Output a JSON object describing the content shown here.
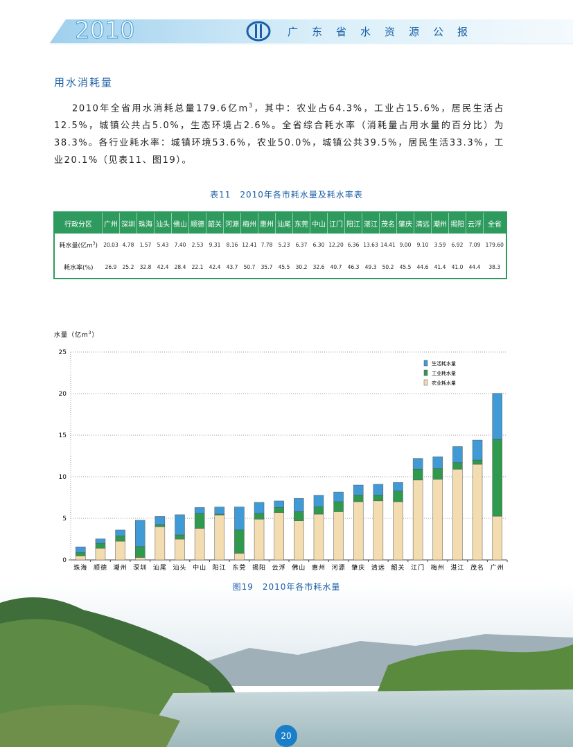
{
  "header": {
    "year": "2010",
    "title": "广东省水资源公报"
  },
  "section": {
    "heading": "用水消耗量",
    "paragraph_parts": [
      "2010年全省用水消耗总量179.6亿m",
      "3",
      "，其中：农业占64.3%，工业占15.6%，居民生活占12.5%，城镇公共占5.0%，生态环境占2.6%。全省综合耗水率（消耗量占用水量的百分比）为38.3%。各行业耗水率：城镇环境53.6%，农业50.0%，城镇公共39.5%，居民生活33.3%，工业20.1%（见表11、图19）。"
    ]
  },
  "table": {
    "caption": "表11　2010年各市耗水量及耗水率表",
    "header": [
      "行政分区",
      "广州",
      "深圳",
      "珠海",
      "汕头",
      "佛山",
      "顺德",
      "韶关",
      "河源",
      "梅州",
      "惠州",
      "汕尾",
      "东莞",
      "中山",
      "江门",
      "阳江",
      "湛江",
      "茂名",
      "肇庆",
      "清远",
      "潮州",
      "揭阳",
      "云浮",
      "全省"
    ],
    "rows": [
      {
        "label": [
          "耗水量(亿m",
          "3",
          ")"
        ],
        "cells": [
          "20.03",
          "4.78",
          "1.57",
          "5.43",
          "7.40",
          "2.53",
          "9.31",
          "8.16",
          "12.41",
          "7.78",
          "5.23",
          "6.37",
          "6.30",
          "12.20",
          "6.36",
          "13.63",
          "14.41",
          "9.00",
          "9.10",
          "3.59",
          "6.92",
          "7.09",
          "179.60"
        ]
      },
      {
        "label": [
          "耗水率(%)"
        ],
        "cells": [
          "26.9",
          "25.2",
          "32.8",
          "42.4",
          "28.4",
          "22.1",
          "42.4",
          "43.7",
          "50.7",
          "35.7",
          "45.5",
          "30.2",
          "32.6",
          "40.7",
          "46.3",
          "49.3",
          "50.2",
          "45.5",
          "44.6",
          "41.4",
          "41.0",
          "44.4",
          "38.3"
        ]
      }
    ]
  },
  "chart_data": {
    "type": "stacked_bar",
    "caption": "图19　2010年各市耗水量",
    "ylabel_parts": [
      "水量（亿m",
      "3",
      "）"
    ],
    "categories": [
      "珠海",
      "顺德",
      "潮州",
      "深圳",
      "汕尾",
      "汕头",
      "中山",
      "阳江",
      "东莞",
      "揭阳",
      "云浮",
      "佛山",
      "惠州",
      "河源",
      "肇庆",
      "清远",
      "韶关",
      "江门",
      "梅州",
      "湛江",
      "茂名",
      "广州"
    ],
    "series": [
      {
        "name": "农业耗水量",
        "color": "#f3dcb0",
        "values": [
          0.5,
          1.4,
          2.25,
          0.3,
          4.0,
          2.5,
          3.8,
          5.4,
          0.8,
          4.9,
          5.7,
          4.7,
          5.5,
          5.8,
          7.0,
          7.1,
          7.0,
          9.6,
          9.7,
          10.9,
          11.5,
          5.25
        ]
      },
      {
        "name": "工业耗水量",
        "color": "#2f9a4e",
        "values": [
          0.4,
          0.6,
          0.65,
          1.3,
          0.25,
          0.5,
          1.8,
          0.1,
          2.8,
          0.7,
          0.6,
          1.1,
          0.9,
          1.2,
          0.8,
          0.7,
          1.3,
          1.3,
          1.3,
          0.8,
          0.5,
          9.25
        ]
      },
      {
        "name": "生活耗水量",
        "color": "#3f9ad6",
        "values": [
          0.67,
          0.53,
          0.69,
          3.18,
          0.98,
          2.43,
          0.7,
          0.86,
          2.77,
          1.32,
          0.79,
          1.6,
          1.38,
          1.16,
          1.2,
          1.3,
          1.01,
          1.3,
          1.41,
          1.93,
          2.41,
          5.53
        ]
      }
    ],
    "ylim": [
      0,
      25
    ],
    "yticks": [
      0,
      5,
      10,
      15,
      20,
      25
    ],
    "grid": true
  },
  "page_number": "20"
}
